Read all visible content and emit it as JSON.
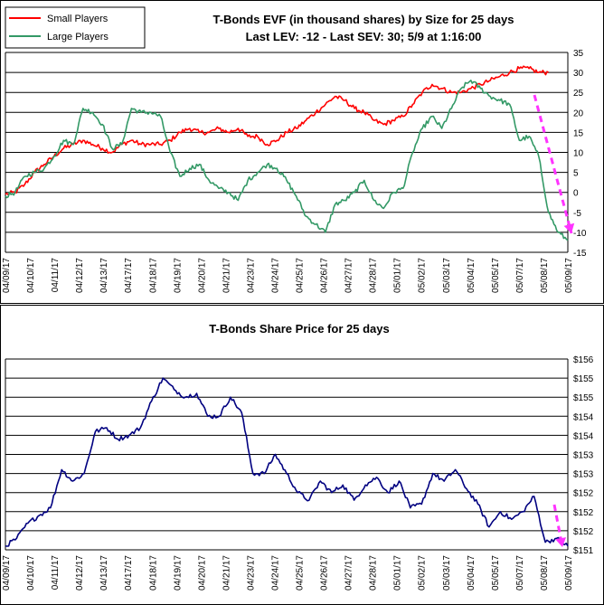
{
  "chart_data": [
    {
      "type": "line",
      "title": "T-Bonds EVF (in thousand shares) by Size for 25 days",
      "subtitle": "Last LEV: -12 - Last SEV: 30; 5/9 at 1:16:00",
      "ylim": [
        -15,
        35
      ],
      "yticks": [
        -15,
        -10,
        -5,
        0,
        5,
        10,
        15,
        20,
        25,
        30,
        35
      ],
      "grid": true,
      "legend_position": "top-left",
      "categories": [
        "04/09/17",
        "04/10/17",
        "04/11/17",
        "04/12/17",
        "04/13/17",
        "04/17/17",
        "04/18/17",
        "04/19/17",
        "04/20/17",
        "04/21/17",
        "04/23/17",
        "04/24/17",
        "04/25/17",
        "04/26/17",
        "04/27/17",
        "04/28/17",
        "05/01/17",
        "05/02/17",
        "05/03/17",
        "05/04/17",
        "05/05/17",
        "05/07/17",
        "05/08/17",
        "05/09/17"
      ],
      "series": [
        {
          "name": "Small Players",
          "color": "#ff0000",
          "values": [
            [
              0,
              -0.5
            ],
            [
              0.5,
              0
            ],
            [
              1,
              2
            ],
            [
              1.5,
              5
            ],
            [
              2,
              7
            ],
            [
              2.5,
              9
            ],
            [
              3,
              11
            ],
            [
              3.5,
              12
            ],
            [
              4,
              13
            ],
            [
              4.5,
              12
            ],
            [
              5,
              11
            ],
            [
              5.5,
              10
            ],
            [
              6,
              12
            ],
            [
              6.5,
              13
            ],
            [
              7,
              12
            ],
            [
              7.5,
              12
            ],
            [
              8,
              12
            ],
            [
              8.5,
              13
            ],
            [
              9,
              15
            ],
            [
              9.5,
              16
            ],
            [
              10,
              15
            ],
            [
              10.5,
              15
            ],
            [
              11,
              16
            ],
            [
              11.5,
              15
            ],
            [
              12,
              16
            ],
            [
              12.5,
              14
            ],
            [
              13,
              14
            ],
            [
              13.5,
              12
            ],
            [
              14,
              13
            ],
            [
              14.5,
              15
            ],
            [
              15,
              16
            ],
            [
              15.5,
              18
            ],
            [
              16,
              20
            ],
            [
              16.5,
              22
            ],
            [
              17,
              24
            ],
            [
              17.5,
              23
            ],
            [
              18,
              21
            ],
            [
              18.5,
              20
            ],
            [
              19,
              18
            ],
            [
              19.5,
              17
            ],
            [
              20,
              18
            ],
            [
              20.5,
              19
            ],
            [
              21,
              22
            ],
            [
              21.5,
              25
            ],
            [
              22,
              27
            ],
            [
              22.5,
              26
            ],
            [
              23,
              25
            ],
            [
              23.5,
              25
            ],
            [
              24,
              26
            ],
            [
              24.5,
              27
            ],
            [
              25,
              28
            ],
            [
              25.5,
              29
            ],
            [
              26,
              30
            ],
            [
              26.5,
              31
            ],
            [
              27,
              31
            ],
            [
              27.5,
              30
            ],
            [
              28,
              30
            ]
          ]
        },
        {
          "name": "Large Players",
          "color": "#339966",
          "values": [
            [
              0,
              -1
            ],
            [
              0.5,
              0
            ],
            [
              1,
              4
            ],
            [
              1.5,
              5
            ],
            [
              2,
              6
            ],
            [
              2.5,
              9
            ],
            [
              3,
              13
            ],
            [
              3.5,
              12
            ],
            [
              4,
              21
            ],
            [
              4.5,
              20
            ],
            [
              5,
              17
            ],
            [
              5.5,
              11
            ],
            [
              6,
              12
            ],
            [
              6.5,
              21
            ],
            [
              7,
              20
            ],
            [
              7.5,
              20
            ],
            [
              8,
              19
            ],
            [
              8.5,
              10
            ],
            [
              9,
              4
            ],
            [
              9.5,
              6
            ],
            [
              10,
              7
            ],
            [
              10.5,
              3
            ],
            [
              11,
              1
            ],
            [
              11.5,
              0
            ],
            [
              12,
              -2
            ],
            [
              12.5,
              3
            ],
            [
              13,
              5
            ],
            [
              13.5,
              7
            ],
            [
              14,
              6
            ],
            [
              14.5,
              3
            ],
            [
              15,
              -1
            ],
            [
              15.5,
              -6
            ],
            [
              16,
              -8
            ],
            [
              16.5,
              -10
            ],
            [
              17,
              -3
            ],
            [
              17.5,
              -2
            ],
            [
              18,
              0
            ],
            [
              18.5,
              3
            ],
            [
              19,
              -2
            ],
            [
              19.5,
              -4
            ],
            [
              20,
              0
            ],
            [
              20.5,
              1
            ],
            [
              21,
              10
            ],
            [
              21.5,
              16
            ],
            [
              22,
              19
            ],
            [
              22.5,
              16
            ],
            [
              23,
              21
            ],
            [
              23.5,
              26
            ],
            [
              24,
              28
            ],
            [
              24.5,
              26
            ],
            [
              25,
              24
            ],
            [
              25.5,
              23
            ],
            [
              26,
              22
            ],
            [
              26.5,
              13
            ],
            [
              27,
              14
            ],
            [
              27.5,
              9
            ],
            [
              28,
              -5
            ],
            [
              28.5,
              -10
            ],
            [
              29,
              -12
            ]
          ]
        }
      ]
    },
    {
      "type": "line",
      "title": "T-Bonds Share Price for 25 days",
      "ylim": [
        151,
        156
      ],
      "yticks": [
        151,
        151.5,
        152,
        152.5,
        153,
        153.5,
        154,
        154.5,
        155,
        155.5,
        156
      ],
      "ytick_labels": [
        "$151",
        "$152",
        "$152",
        "$152",
        "$153",
        "$153",
        "$154",
        "$154",
        "$155",
        "$155",
        "$156"
      ],
      "grid": true,
      "categories": [
        "04/09/17",
        "04/10/17",
        "04/11/17",
        "04/12/17",
        "04/13/17",
        "04/17/17",
        "04/18/17",
        "04/19/17",
        "04/20/17",
        "04/21/17",
        "04/23/17",
        "04/24/17",
        "04/25/17",
        "04/26/17",
        "04/27/17",
        "04/28/17",
        "05/01/17",
        "05/02/17",
        "05/03/17",
        "05/04/17",
        "05/05/17",
        "05/07/17",
        "05/08/17",
        "05/09/17"
      ],
      "series": [
        {
          "color": "#000080",
          "values": [
            [
              0,
              151.1
            ],
            [
              0.5,
              151.3
            ],
            [
              1,
              151.7
            ],
            [
              1.5,
              151.9
            ],
            [
              2,
              152.1
            ],
            [
              2.5,
              153.1
            ],
            [
              3,
              152.8
            ],
            [
              3.5,
              153.0
            ],
            [
              4,
              154.1
            ],
            [
              4.5,
              154.2
            ],
            [
              5,
              153.9
            ],
            [
              5.5,
              154.0
            ],
            [
              6,
              154.2
            ],
            [
              6.5,
              154.9
            ],
            [
              7,
              155.5
            ],
            [
              7.5,
              155.2
            ],
            [
              8,
              155.0
            ],
            [
              8.5,
              155.1
            ],
            [
              9,
              154.5
            ],
            [
              9.5,
              154.5
            ],
            [
              10,
              155.0
            ],
            [
              10.5,
              154.6
            ],
            [
              11,
              153.0
            ],
            [
              11.5,
              153.0
            ],
            [
              12,
              153.5
            ],
            [
              12.5,
              153.0
            ],
            [
              13,
              152.5
            ],
            [
              13.5,
              152.3
            ],
            [
              14,
              152.8
            ],
            [
              14.5,
              152.5
            ],
            [
              15,
              152.7
            ],
            [
              15.5,
              152.3
            ],
            [
              16,
              152.7
            ],
            [
              16.5,
              152.9
            ],
            [
              17,
              152.5
            ],
            [
              17.5,
              152.8
            ],
            [
              18,
              152.1
            ],
            [
              18.5,
              152.2
            ],
            [
              19,
              153.0
            ],
            [
              19.5,
              152.8
            ],
            [
              20,
              153.1
            ],
            [
              20.5,
              152.6
            ],
            [
              21,
              152.2
            ],
            [
              21.5,
              151.6
            ],
            [
              22,
              152.0
            ],
            [
              22.5,
              151.8
            ],
            [
              23,
              152.0
            ],
            [
              23.5,
              152.4
            ],
            [
              24,
              151.2
            ],
            [
              24.5,
              151.3
            ],
            [
              25,
              151.1
            ]
          ]
        }
      ]
    }
  ]
}
